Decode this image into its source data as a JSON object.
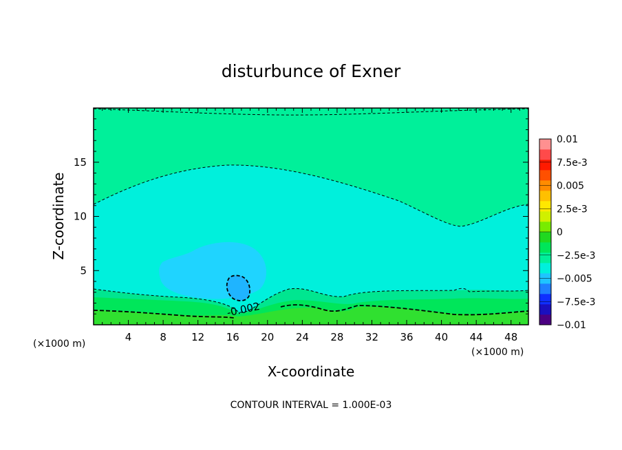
{
  "chart_data": {
    "type": "heatmap",
    "title": "disturbunce of Exner",
    "xlabel": "X-coordinate",
    "ylabel": "Z-coordinate",
    "x_unit": "(×1000 m)",
    "y_unit": "(×1000 m)",
    "xlim": [
      0,
      50
    ],
    "ylim": [
      0,
      20
    ],
    "x_ticks": [
      4,
      8,
      12,
      16,
      20,
      24,
      28,
      32,
      36,
      40,
      44,
      48
    ],
    "y_ticks": [
      5,
      10,
      15
    ],
    "footer": "CONTOUR INTERVAL = 1.000E-03",
    "contour_interval": 0.001,
    "contour_labels": [
      {
        "text": "-0.002",
        "x": 17.3,
        "y": 1.1
      }
    ],
    "colorbar": {
      "min": -0.01,
      "max": 0.01,
      "labels": [
        "0.01",
        "7.5e-3",
        "0.005",
        "2.5e-3",
        "0",
        "−2.5e-3",
        "−0.005",
        "−7.5e-3",
        "−0.01"
      ],
      "colors": [
        "#4b0082",
        "#1a0fbf",
        "#0f2fff",
        "#1f7fff",
        "#1fc4ff",
        "#00f0dc",
        "#00f09a",
        "#00e65a",
        "#20d820",
        "#78ec00",
        "#d0f000",
        "#ffe800",
        "#ffc000",
        "#ff8c00",
        "#ff5000",
        "#ff1a00",
        "#ff4a4a",
        "#ff9090"
      ]
    },
    "regions": [
      {
        "level": -0.0015,
        "color": "#00f09a",
        "name": "upper"
      },
      {
        "level": -0.0025,
        "color": "#00f0dc",
        "name": "middle"
      },
      {
        "level": -0.0035,
        "color": "#1fd4ff",
        "name": "light-blue-blob"
      },
      {
        "level": -0.0045,
        "color": "#1fb4ff",
        "name": "core"
      },
      {
        "level": -0.0015,
        "color": "#00e690",
        "name": "lower-band"
      },
      {
        "level": -0.0005,
        "color": "#00e65a",
        "name": "green-band"
      },
      {
        "level": 0.0005,
        "color": "#30e030",
        "name": "surface"
      }
    ]
  }
}
